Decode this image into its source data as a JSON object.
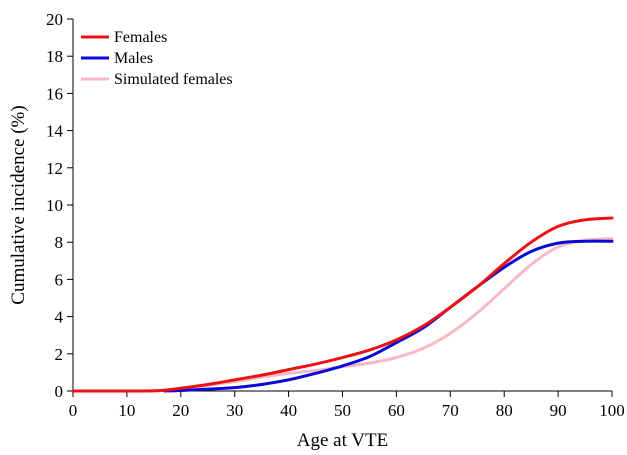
{
  "chart_data": {
    "type": "line",
    "title": "",
    "xlabel": "Age at VTE",
    "ylabel": "Cumulative incidence (%)",
    "xlim": [
      0,
      100
    ],
    "ylim": [
      0,
      20
    ],
    "xticks": [
      0,
      10,
      20,
      30,
      40,
      50,
      60,
      70,
      80,
      90,
      100
    ],
    "yticks": [
      0,
      2,
      4,
      6,
      8,
      10,
      12,
      14,
      16,
      18,
      20
    ],
    "grid": false,
    "legend_position": "top-left",
    "series": [
      {
        "name": "Females",
        "color": "#ee1111",
        "x": [
          0,
          10,
          16,
          20,
          25,
          30,
          35,
          40,
          45,
          50,
          55,
          60,
          65,
          70,
          75,
          80,
          85,
          90,
          95,
          100
        ],
        "y": [
          0,
          0,
          0.02,
          0.15,
          0.35,
          0.6,
          0.85,
          1.15,
          1.45,
          1.8,
          2.2,
          2.75,
          3.5,
          4.5,
          5.6,
          6.85,
          8.0,
          8.85,
          9.2,
          9.3
        ]
      },
      {
        "name": "Males",
        "color": "#0a0ad6",
        "x": [
          17,
          20,
          25,
          30,
          35,
          40,
          45,
          50,
          55,
          60,
          65,
          70,
          75,
          80,
          85,
          90,
          95,
          100
        ],
        "y": [
          0,
          0.03,
          0.1,
          0.18,
          0.35,
          0.6,
          0.95,
          1.35,
          1.85,
          2.6,
          3.4,
          4.5,
          5.6,
          6.65,
          7.5,
          7.95,
          8.05,
          8.05
        ]
      },
      {
        "name": "Simulated females",
        "color": "#f7b9c6",
        "x": [
          0,
          10,
          16,
          20,
          25,
          30,
          35,
          40,
          45,
          50,
          55,
          60,
          65,
          70,
          75,
          80,
          85,
          90,
          95,
          100
        ],
        "y": [
          0,
          0,
          0.02,
          0.12,
          0.3,
          0.5,
          0.75,
          0.95,
          1.1,
          1.3,
          1.5,
          1.8,
          2.3,
          3.1,
          4.2,
          5.5,
          6.8,
          7.75,
          8.1,
          8.2
        ]
      }
    ]
  }
}
